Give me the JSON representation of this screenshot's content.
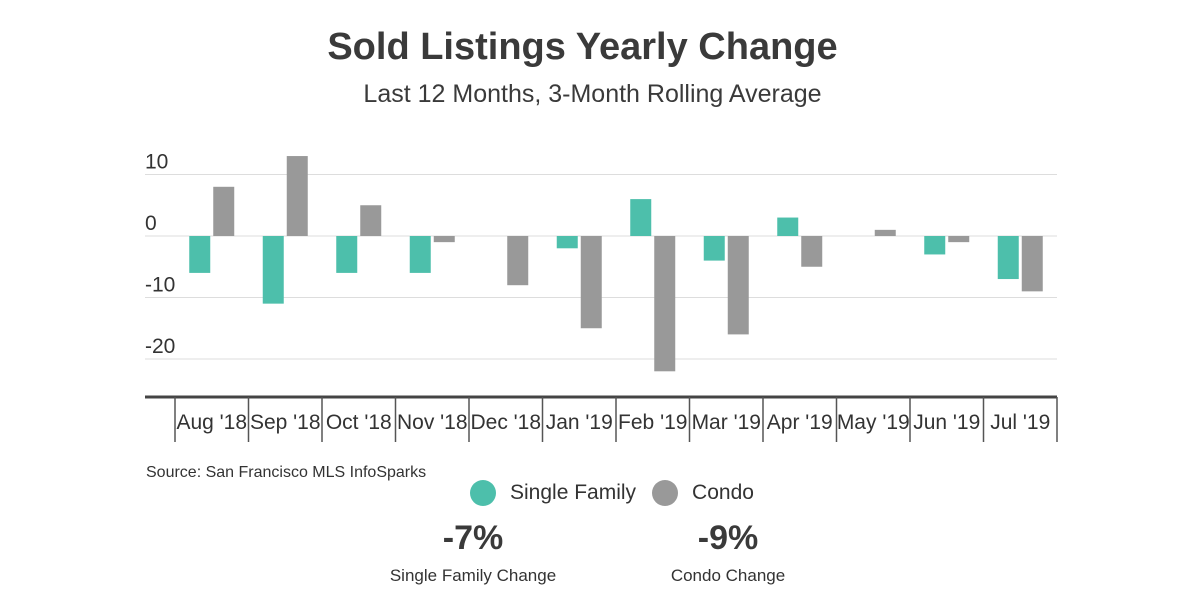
{
  "title": "Sold Listings Yearly Change",
  "subtitle": "Last 12 Months, 3-Month Rolling Average",
  "source": "Source:  San Francisco MLS InfoSparks",
  "legend": [
    {
      "label": "Single Family",
      "color": "#4dbfab"
    },
    {
      "label": "Condo",
      "color": "#999999"
    }
  ],
  "stats": [
    {
      "value": "-7%",
      "label": "Single Family  Change"
    },
    {
      "value": "-9%",
      "label": "Condo Change"
    }
  ],
  "chart_data": {
    "type": "bar",
    "categories": [
      "Aug '18",
      "Sep '18",
      "Oct '18",
      "Nov '18",
      "Dec '18",
      "Jan '19",
      "Feb '19",
      "Mar '19",
      "Apr '19",
      "May '19",
      "Jun '19",
      "Jul '19"
    ],
    "series": [
      {
        "name": "Single Family",
        "color": "#4dbfab",
        "values": [
          -6,
          -11,
          -6,
          -6,
          0,
          -2,
          6,
          -4,
          3,
          0,
          -3,
          -7
        ]
      },
      {
        "name": "Condo",
        "color": "#999999",
        "values": [
          8,
          13,
          5,
          -1,
          -8,
          -15,
          -22,
          -16,
          -5,
          1,
          -1,
          -9
        ]
      }
    ],
    "yticks": [
      10,
      0,
      -10,
      -20
    ],
    "ylim": [
      -25,
      13
    ],
    "grid": true,
    "title": "Sold Listings Yearly Change",
    "subtitle": "Last 12 Months, 3-Month Rolling Average"
  }
}
